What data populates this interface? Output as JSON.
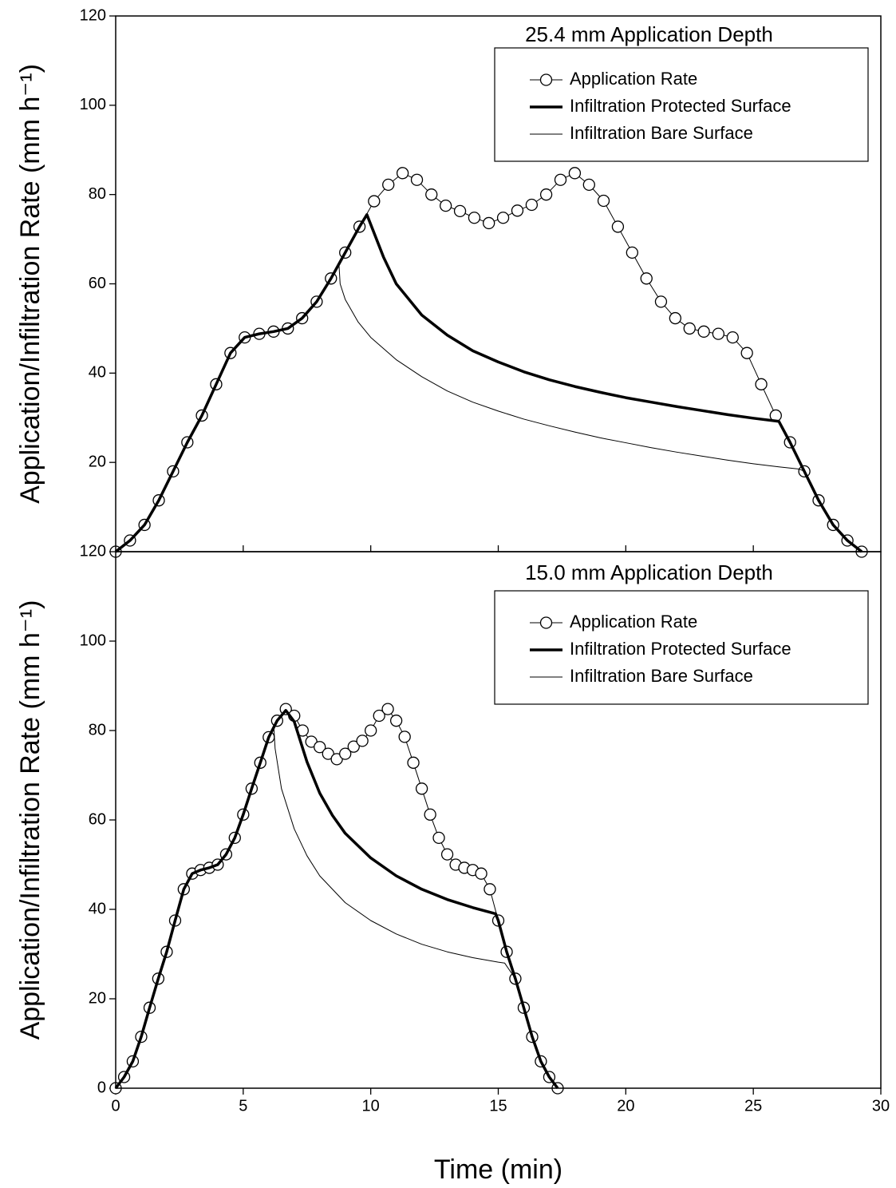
{
  "chart_data": [
    {
      "type": "line",
      "annotation": "25.4 mm Application Depth",
      "y_label": "Application/Infiltration Rate (mm h⁻¹)",
      "xlim": [
        0,
        30
      ],
      "ylim": [
        0,
        120
      ],
      "yticks": [
        20,
        40,
        60,
        80,
        100,
        120
      ],
      "legend": "upper right",
      "series": [
        {
          "name": "Application Rate",
          "color": "#000000",
          "line_width": 1,
          "marker": "circle",
          "x": [
            0,
            0.56,
            1.13,
            1.69,
            2.25,
            2.81,
            3.38,
            3.94,
            4.5,
            5.06,
            5.63,
            6.19,
            6.75,
            7.31,
            7.88,
            8.44,
            9,
            9.56,
            10.13,
            10.69,
            11.25,
            11.81,
            12.38,
            12.94,
            13.5,
            14.06,
            14.63,
            15.19,
            15.75,
            16.31,
            16.88,
            17.44,
            18,
            18.56,
            19.13,
            19.69,
            20.25,
            20.81,
            21.38,
            21.94,
            22.5,
            23.06,
            23.63,
            24.19,
            24.75,
            25.31,
            25.88,
            26.44,
            27,
            27.56,
            28.13,
            28.69,
            29.25
          ],
          "values": [
            0,
            2.5,
            6,
            11.5,
            18,
            24.5,
            30.5,
            37.5,
            44.5,
            48,
            48.8,
            49.3,
            50,
            52.3,
            56,
            61.2,
            67,
            72.8,
            78.5,
            82.2,
            84.8,
            83.3,
            80,
            77.5,
            76.3,
            74.8,
            73.6,
            74.8,
            76.4,
            77.7,
            80,
            83.3,
            84.8,
            82.2,
            78.6,
            72.8,
            67,
            61.2,
            56,
            52.3,
            50,
            49.3,
            48.8,
            48,
            44.5,
            37.5,
            30.5,
            24.5,
            18,
            11.5,
            6,
            2.5,
            0
          ]
        },
        {
          "name": "Infiltration Protected Surface",
          "color": "#000000",
          "line_width": 3.5,
          "x": [
            0,
            0.56,
            1.13,
            1.69,
            2.25,
            2.81,
            3.38,
            3.94,
            4.5,
            5.06,
            5.63,
            6.19,
            6.75,
            7.31,
            7.88,
            8.44,
            9,
            9.56,
            9.85,
            10.5,
            11,
            12,
            13,
            14,
            15,
            16,
            17,
            18,
            19,
            20,
            21,
            22,
            23,
            24,
            25,
            26,
            26.44,
            27,
            27.56,
            28.13,
            28.69,
            29.25
          ],
          "values": [
            0,
            2.5,
            6,
            11.5,
            18,
            24.5,
            30.5,
            37.5,
            44.5,
            48,
            48.8,
            49.3,
            50,
            52.3,
            56,
            61.2,
            67,
            72.8,
            75.5,
            66,
            60,
            53,
            48.5,
            45,
            42.5,
            40.3,
            38.5,
            37,
            35.7,
            34.5,
            33.5,
            32.5,
            31.6,
            30.7,
            29.9,
            29.2,
            24.5,
            18,
            11.5,
            6,
            2.5,
            0
          ]
        },
        {
          "name": "Infiltration Bare Surface",
          "color": "#000000",
          "line_width": 1,
          "x": [
            0,
            0.56,
            1.13,
            1.69,
            2.25,
            2.81,
            3.38,
            3.94,
            4.5,
            5.06,
            5.63,
            6.19,
            6.75,
            7.31,
            7.88,
            8.44,
            8.75,
            8.8,
            9,
            9.5,
            10,
            11,
            12,
            13,
            14,
            15,
            16,
            17,
            18,
            19,
            20,
            21,
            22,
            23,
            24,
            25,
            26,
            26.8,
            27,
            27.56,
            28.13,
            28.69,
            29.25
          ],
          "values": [
            0,
            2.5,
            6,
            11.5,
            18,
            24.5,
            30.5,
            37.5,
            44.5,
            48,
            48.8,
            49.3,
            50,
            52.3,
            56,
            61.2,
            64.8,
            60,
            56.5,
            51.5,
            48,
            43,
            39.2,
            36,
            33.5,
            31.5,
            29.7,
            28.2,
            26.8,
            25.5,
            24.4,
            23.3,
            22.3,
            21.4,
            20.5,
            19.7,
            19,
            18.5,
            18,
            11.5,
            6,
            2.5,
            0
          ]
        }
      ]
    },
    {
      "type": "line",
      "annotation": "15.0 mm Application Depth",
      "y_label": "Application/Infiltration Rate (mm h⁻¹)",
      "x_label": "Time (min)",
      "xlim": [
        0,
        30
      ],
      "xticks": [
        0,
        5,
        10,
        15,
        20,
        25,
        30
      ],
      "ylim": [
        0,
        120
      ],
      "yticks": [
        0,
        20,
        40,
        60,
        80,
        100,
        120
      ],
      "legend": "upper right",
      "series": [
        {
          "name": "Application Rate",
          "color": "#000000",
          "line_width": 1,
          "marker": "circle",
          "x": [
            0,
            0.33,
            0.67,
            1,
            1.33,
            1.67,
            2,
            2.33,
            2.67,
            3,
            3.33,
            3.67,
            4,
            4.33,
            4.67,
            5,
            5.33,
            5.67,
            6,
            6.33,
            6.67,
            7,
            7.33,
            7.67,
            8,
            8.33,
            8.67,
            9,
            9.33,
            9.67,
            10,
            10.33,
            10.67,
            11,
            11.33,
            11.67,
            12,
            12.33,
            12.67,
            13,
            13.33,
            13.67,
            14,
            14.33,
            14.67,
            15,
            15.33,
            15.67,
            16,
            16.33,
            16.67,
            17,
            17.33
          ],
          "values": [
            0,
            2.5,
            6,
            11.5,
            18,
            24.5,
            30.5,
            37.5,
            44.5,
            48,
            48.8,
            49.3,
            50,
            52.3,
            56,
            61.2,
            67,
            72.8,
            78.5,
            82.2,
            84.8,
            83.3,
            80,
            77.5,
            76.3,
            74.8,
            73.6,
            74.8,
            76.4,
            77.7,
            80,
            83.3,
            84.8,
            82.2,
            78.6,
            72.8,
            67,
            61.2,
            56,
            52.3,
            50,
            49.3,
            48.8,
            48,
            44.5,
            37.5,
            30.5,
            24.5,
            18,
            11.5,
            6,
            2.5,
            0
          ]
        },
        {
          "name": "Infiltration Protected Surface",
          "color": "#000000",
          "line_width": 3.5,
          "x": [
            0,
            0.33,
            0.67,
            1,
            1.33,
            1.67,
            2,
            2.33,
            2.67,
            3,
            3.33,
            3.67,
            4,
            4.33,
            4.67,
            5,
            5.33,
            5.67,
            6,
            6.33,
            6.67,
            7,
            7.5,
            8,
            8.5,
            9,
            10,
            11,
            12,
            13,
            14,
            14.9,
            15,
            15.33,
            15.67,
            16,
            16.33,
            16.67,
            17,
            17.33
          ],
          "values": [
            0,
            2.5,
            6,
            11.5,
            18,
            24.5,
            30.5,
            37.5,
            44.5,
            48,
            48.8,
            49.3,
            50,
            52.3,
            56,
            61.2,
            67,
            72.8,
            78.5,
            82.2,
            84.5,
            82,
            73,
            66,
            61,
            57,
            51.5,
            47.5,
            44.5,
            42.2,
            40.4,
            39,
            37.5,
            30.5,
            24.5,
            18,
            11.5,
            6,
            2.5,
            0
          ]
        },
        {
          "name": "Infiltration Bare Surface",
          "color": "#000000",
          "line_width": 1,
          "x": [
            0,
            0.33,
            0.67,
            1,
            1.33,
            1.67,
            2,
            2.33,
            2.67,
            3,
            3.33,
            3.67,
            4,
            4.33,
            4.67,
            5,
            5.33,
            5.67,
            6,
            6.2,
            6.25,
            6.5,
            7,
            7.5,
            8,
            9,
            10,
            11,
            12,
            13,
            14,
            15,
            15.25,
            15.67,
            16,
            16.33,
            16.67,
            17,
            17.33
          ],
          "values": [
            0,
            2.5,
            6,
            11.5,
            18,
            24.5,
            30.5,
            37.5,
            44.5,
            48,
            48.8,
            49.3,
            50,
            52.3,
            56,
            61.2,
            67,
            72.8,
            78.5,
            81,
            76,
            67,
            58,
            52,
            47.5,
            41.5,
            37.5,
            34.5,
            32.2,
            30.5,
            29.2,
            28.2,
            28,
            24.5,
            18,
            11.5,
            6,
            2.5,
            0
          ]
        }
      ]
    }
  ]
}
